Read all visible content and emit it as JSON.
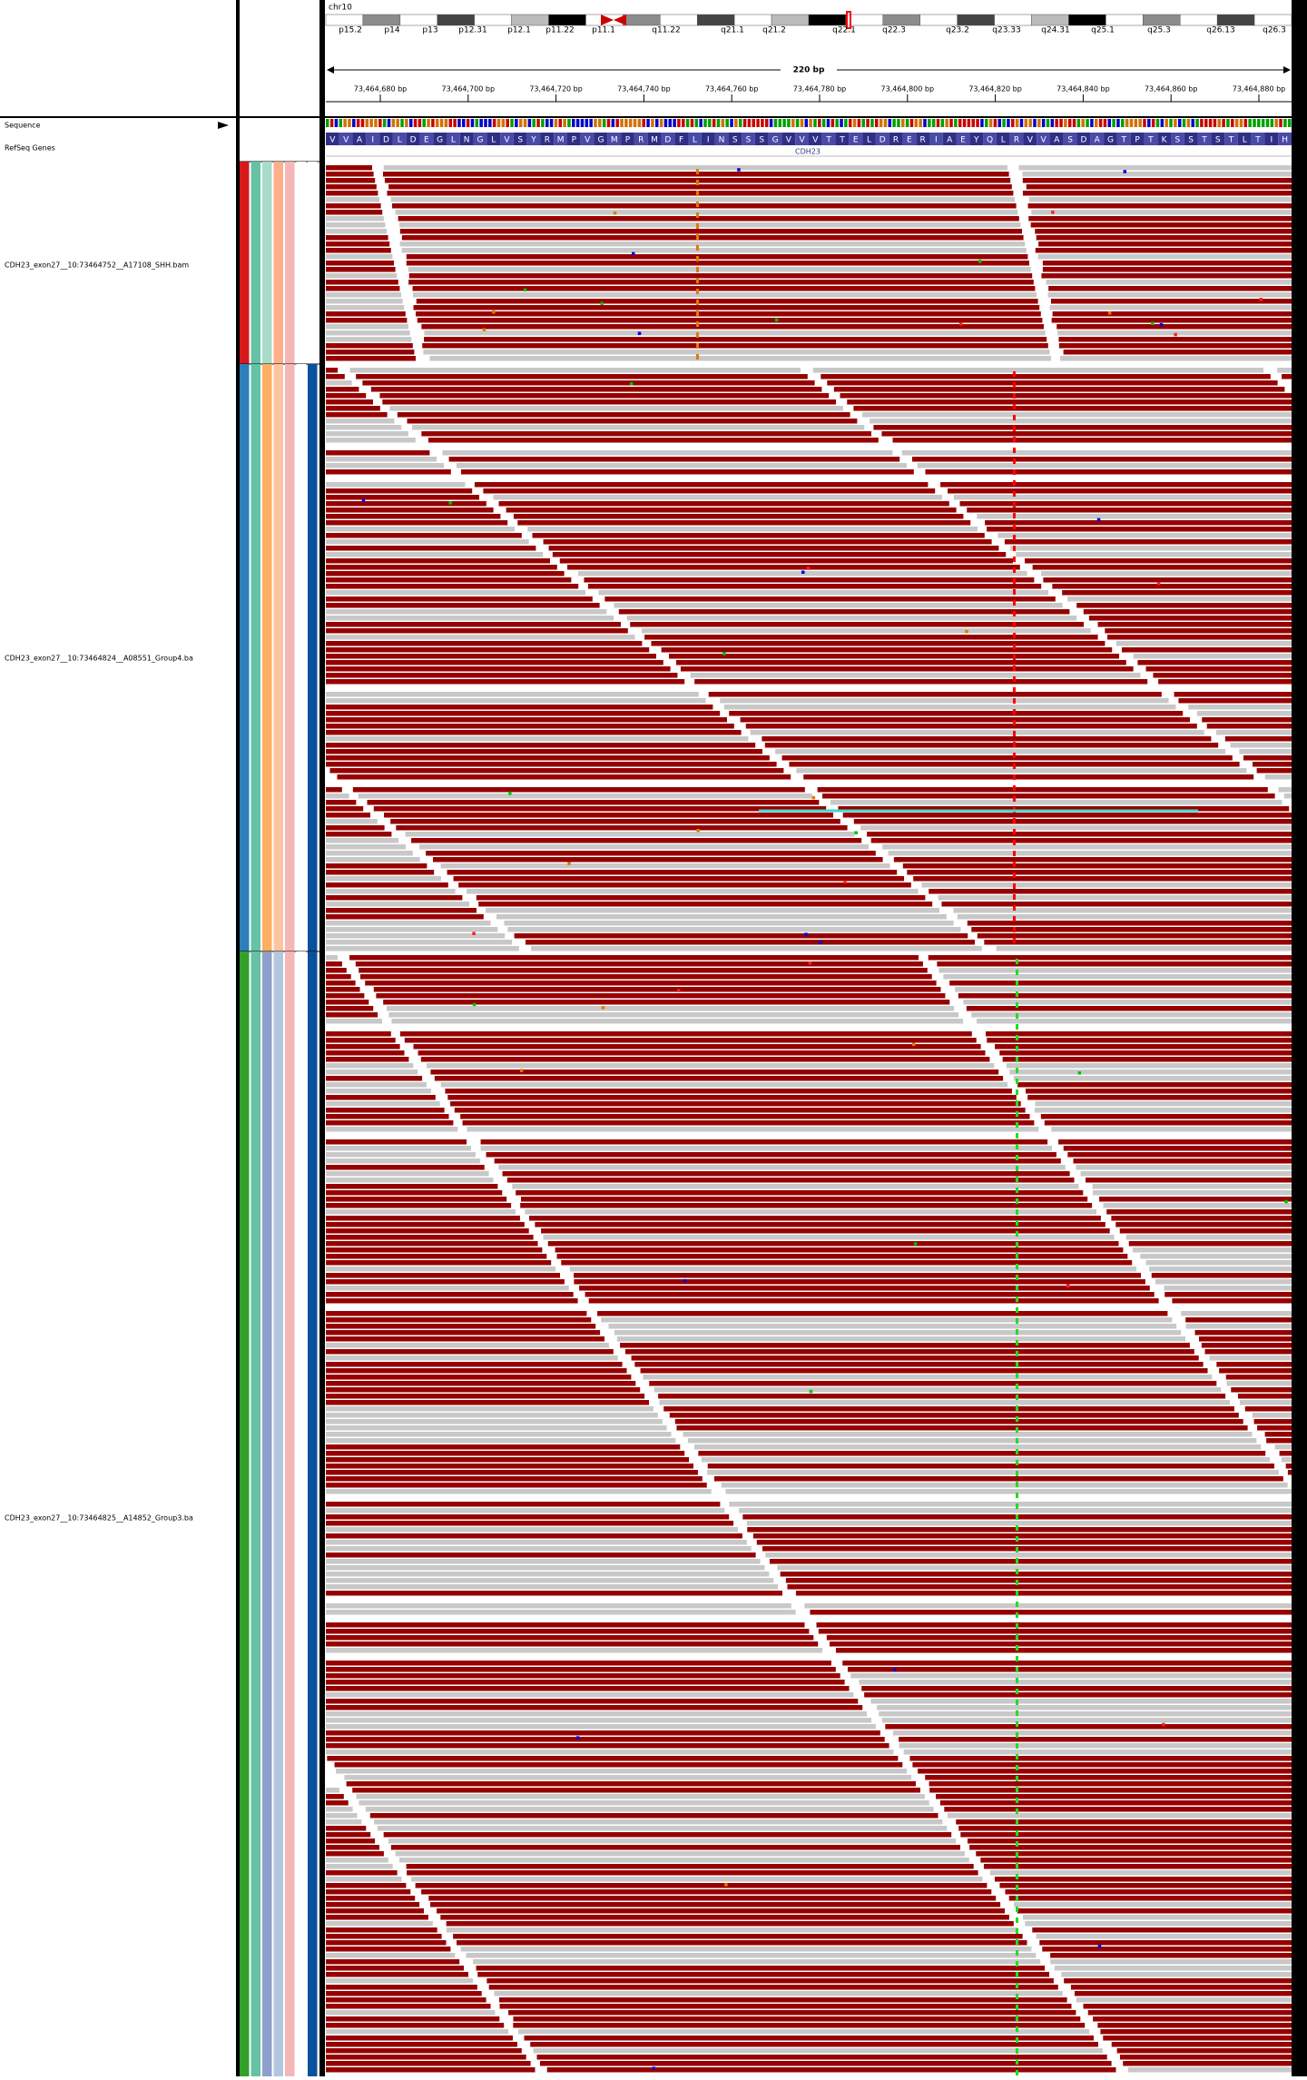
{
  "locus": {
    "chromosome": "chr10",
    "cytobands": [
      "p15.2",
      "p14",
      "p13",
      "p12.31",
      "p12.1",
      "p11.22",
      "p11.1",
      "q11.22",
      "q21.1",
      "q21.2",
      "q22.1",
      "q22.3",
      "q23.2",
      "q23.33",
      "q24.31",
      "q25.1",
      "q25.3",
      "q26.13",
      "q26.3"
    ],
    "span": "220 bp",
    "ruler_labels": [
      "73,464,680 bp",
      "73,464,700 bp",
      "73,464,720 bp",
      "73,464,740 bp",
      "73,464,760 bp",
      "73,464,780 bp",
      "73,464,800 bp",
      "73,464,820 bp",
      "73,464,840 bp",
      "73,464,860 bp",
      "73,464,880 bp"
    ]
  },
  "tracks": {
    "sequence": "Sequence",
    "refseq": "RefSeq Genes",
    "gene": "CDH23",
    "amino_acids": [
      "V",
      "V",
      "A",
      "I",
      "D",
      "L",
      "D",
      "E",
      "G",
      "L",
      "N",
      "G",
      "L",
      "V",
      "S",
      "Y",
      "R",
      "M",
      "P",
      "V",
      "G",
      "M",
      "P",
      "R",
      "M",
      "D",
      "F",
      "L",
      "I",
      "N",
      "S",
      "S",
      "S",
      "G",
      "V",
      "V",
      "V",
      "T",
      "T",
      "E",
      "L",
      "D",
      "R",
      "E",
      "R",
      "I",
      "A",
      "E",
      "Y",
      "Q",
      "L",
      "R",
      "V",
      "V",
      "A",
      "S",
      "D",
      "A",
      "G",
      "T",
      "P",
      "T",
      "K",
      "S",
      "S",
      "T",
      "S",
      "T",
      "L",
      "T",
      "I",
      "H"
    ]
  },
  "alignments": [
    {
      "name": "CDH23_exon27__10:73464752__A17108_SHH.bam"
    },
    {
      "name": "CDH23_exon27__10:73464824__A08551_Group4.ba"
    },
    {
      "name": "CDH23_exon27__10:73464825__A14852_Group3.ba"
    }
  ]
}
